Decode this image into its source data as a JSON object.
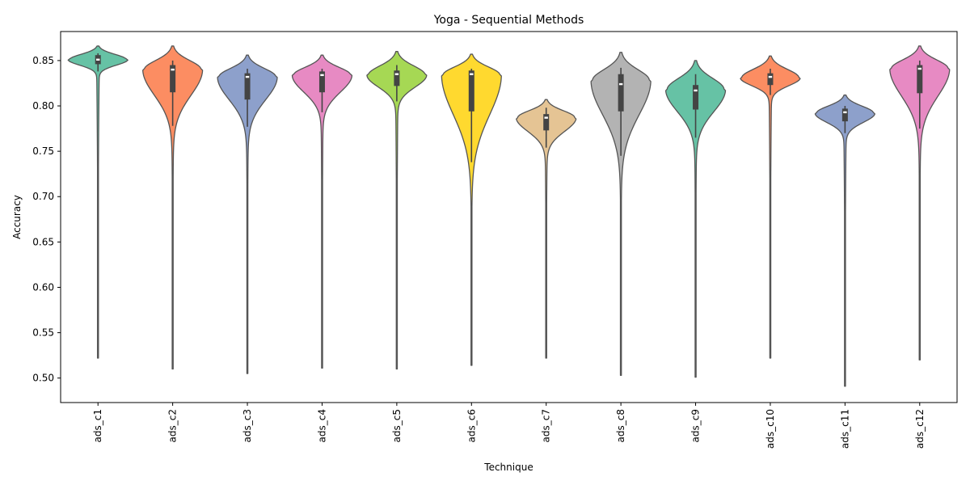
{
  "chart_data": {
    "type": "violin",
    "title": "Yoga - Sequential Methods",
    "xlabel": "Technique",
    "ylabel": "Accuracy",
    "ylim": [
      0.473,
      0.882
    ],
    "yticks": [
      "0.50",
      "0.55",
      "0.60",
      "0.65",
      "0.70",
      "0.75",
      "0.80",
      "0.85"
    ],
    "grid": false,
    "categories": [
      "ads_c1",
      "ads_c2",
      "ads_c3",
      "ads_c4",
      "ads_c5",
      "ads_c6",
      "ads_c7",
      "ads_c8",
      "ads_c9",
      "ads_c10",
      "ads_c11",
      "ads_c12"
    ],
    "series": [
      {
        "category": "ads_c1",
        "color": "#66c2a5",
        "min": 0.522,
        "max": 0.866,
        "q1": 0.846,
        "median": 0.851,
        "q3": 0.856,
        "whisker_low": 0.838,
        "whisker_high": 0.858,
        "mode": 0.851,
        "peak_halfwidth": 0.4
      },
      {
        "category": "ads_c2",
        "color": "#fc8d62",
        "min": 0.51,
        "max": 0.866,
        "q1": 0.815,
        "median": 0.84,
        "q3": 0.845,
        "whisker_low": 0.778,
        "whisker_high": 0.85,
        "mode": 0.84,
        "peak_halfwidth": 0.4
      },
      {
        "category": "ads_c3",
        "color": "#8da0cb",
        "min": 0.505,
        "max": 0.856,
        "q1": 0.807,
        "median": 0.832,
        "q3": 0.836,
        "whisker_low": 0.777,
        "whisker_high": 0.841,
        "mode": 0.832,
        "peak_halfwidth": 0.4
      },
      {
        "category": "ads_c4",
        "color": "#e78ac3",
        "min": 0.511,
        "max": 0.856,
        "q1": 0.815,
        "median": 0.834,
        "q3": 0.838,
        "whisker_low": 0.793,
        "whisker_high": 0.841,
        "mode": 0.834,
        "peak_halfwidth": 0.4
      },
      {
        "category": "ads_c5",
        "color": "#a6d854",
        "min": 0.51,
        "max": 0.86,
        "q1": 0.822,
        "median": 0.835,
        "q3": 0.839,
        "whisker_low": 0.805,
        "whisker_high": 0.845,
        "mode": 0.834,
        "peak_halfwidth": 0.4
      },
      {
        "category": "ads_c6",
        "color": "#ffd92f",
        "min": 0.514,
        "max": 0.857,
        "q1": 0.794,
        "median": 0.835,
        "q3": 0.839,
        "whisker_low": 0.738,
        "whisker_high": 0.841,
        "mode": 0.834,
        "peak_halfwidth": 0.4
      },
      {
        "category": "ads_c7",
        "color": "#e5c494",
        "min": 0.522,
        "max": 0.807,
        "q1": 0.773,
        "median": 0.787,
        "q3": 0.791,
        "whisker_low": 0.754,
        "whisker_high": 0.798,
        "mode": 0.787,
        "peak_halfwidth": 0.4
      },
      {
        "category": "ads_c8",
        "color": "#b3b3b3",
        "min": 0.503,
        "max": 0.859,
        "q1": 0.794,
        "median": 0.824,
        "q3": 0.835,
        "whisker_low": 0.745,
        "whisker_high": 0.842,
        "mode": 0.828,
        "peak_halfwidth": 0.4
      },
      {
        "category": "ads_c9",
        "color": "#66c2a5",
        "min": 0.501,
        "max": 0.85,
        "q1": 0.796,
        "median": 0.817,
        "q3": 0.823,
        "whisker_low": 0.765,
        "whisker_high": 0.835,
        "mode": 0.818,
        "peak_halfwidth": 0.4
      },
      {
        "category": "ads_c10",
        "color": "#fc8d62",
        "min": 0.522,
        "max": 0.855,
        "q1": 0.823,
        "median": 0.832,
        "q3": 0.836,
        "whisker_low": 0.812,
        "whisker_high": 0.841,
        "mode": 0.831,
        "peak_halfwidth": 0.4
      },
      {
        "category": "ads_c11",
        "color": "#8da0cb",
        "min": 0.491,
        "max": 0.812,
        "q1": 0.783,
        "median": 0.793,
        "q3": 0.797,
        "whisker_low": 0.77,
        "whisker_high": 0.8,
        "mode": 0.792,
        "peak_halfwidth": 0.4
      },
      {
        "category": "ads_c12",
        "color": "#e78ac3",
        "min": 0.52,
        "max": 0.866,
        "q1": 0.814,
        "median": 0.841,
        "q3": 0.845,
        "whisker_low": 0.775,
        "whisker_high": 0.85,
        "mode": 0.841,
        "peak_halfwidth": 0.4
      }
    ]
  }
}
